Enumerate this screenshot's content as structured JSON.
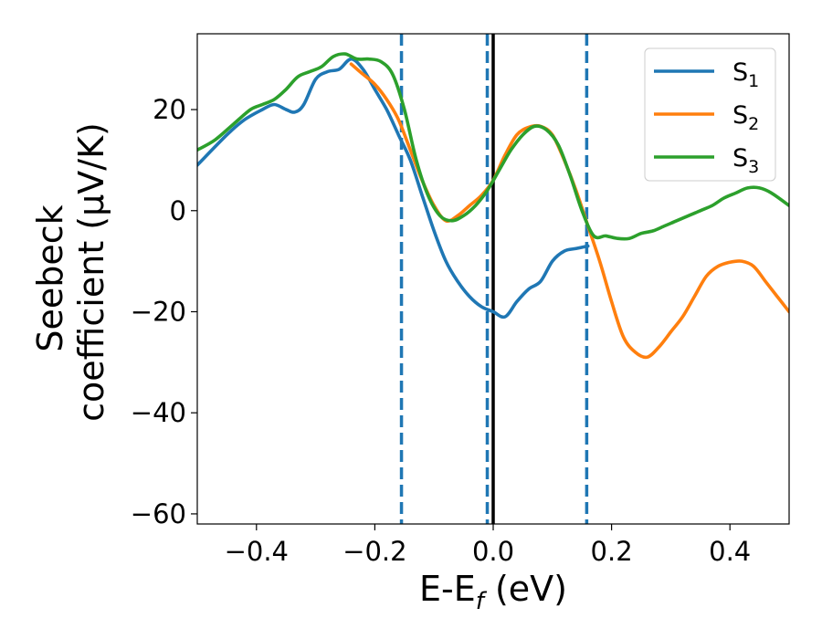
{
  "chart_data": {
    "type": "line",
    "title": "",
    "xlabel": {
      "base": "E-E",
      "sub": "f",
      "tail": " (eV)"
    },
    "ylabel_line1": "Seebeck",
    "ylabel_line2": "coefficient  (μV/K)",
    "xlim": [
      -0.5,
      0.5
    ],
    "ylim": [
      -62,
      35
    ],
    "xticks": [
      -0.4,
      -0.2,
      0.0,
      0.2,
      0.4
    ],
    "xtick_labels": [
      "−0.4",
      "−0.2",
      "0.0",
      "0.2",
      "0.4"
    ],
    "yticks": [
      20,
      0,
      -20,
      -40,
      -60
    ],
    "ytick_labels": [
      "20",
      "0",
      "−20",
      "−40",
      "−60"
    ],
    "vlines": [
      {
        "x": -0.155,
        "style": "dashed",
        "color": "#1f77b4"
      },
      {
        "x": -0.01,
        "style": "dashed",
        "color": "#1f77b4"
      },
      {
        "x": 0.0,
        "style": "solid",
        "color": "#000000"
      },
      {
        "x": 0.158,
        "style": "dashed",
        "color": "#1f77b4"
      }
    ],
    "legend": {
      "position": "top-right"
    },
    "series": [
      {
        "name": "S",
        "sub": "1",
        "color": "#1f77b4",
        "x": [
          -0.5,
          -0.45,
          -0.42,
          -0.39,
          -0.37,
          -0.35,
          -0.335,
          -0.32,
          -0.3,
          -0.28,
          -0.26,
          -0.24,
          -0.22,
          -0.2,
          -0.18,
          -0.16,
          -0.14,
          -0.12,
          -0.1,
          -0.08,
          -0.06,
          -0.04,
          -0.02,
          0.0,
          0.02,
          0.04,
          0.06,
          0.08,
          0.1,
          0.12,
          0.14,
          0.16
        ],
        "values": [
          9,
          15,
          18,
          20,
          21,
          20,
          19.5,
          21,
          26,
          27.5,
          28,
          30,
          28,
          24,
          20,
          15,
          10,
          3,
          -4,
          -10,
          -14,
          -17,
          -19,
          -20,
          -21,
          -18,
          -15.5,
          -14,
          -10,
          -8,
          -7.5,
          -7
        ]
      },
      {
        "name": "S",
        "sub": "2",
        "color": "#ff7f0e",
        "x": [
          -0.24,
          -0.22,
          -0.2,
          -0.18,
          -0.16,
          -0.14,
          -0.12,
          -0.1,
          -0.08,
          -0.06,
          -0.04,
          -0.02,
          0.0,
          0.02,
          0.04,
          0.06,
          0.08,
          0.1,
          0.12,
          0.14,
          0.16,
          0.18,
          0.2,
          0.22,
          0.24,
          0.26,
          0.28,
          0.3,
          0.32,
          0.34,
          0.36,
          0.38,
          0.4,
          0.42,
          0.44,
          0.46,
          0.48,
          0.5
        ],
        "values": [
          29,
          27,
          25,
          22,
          18,
          12,
          6,
          1,
          -2,
          -1,
          1,
          3,
          6,
          11,
          15,
          16.5,
          16.7,
          15,
          10,
          4,
          -3,
          -10,
          -18,
          -25,
          -28,
          -29,
          -27,
          -24,
          -21,
          -17,
          -13,
          -11,
          -10.2,
          -10,
          -11,
          -14,
          -17,
          -20
        ]
      },
      {
        "name": "S",
        "sub": "3",
        "color": "#2ca02c",
        "x": [
          -0.5,
          -0.47,
          -0.44,
          -0.41,
          -0.39,
          -0.37,
          -0.35,
          -0.33,
          -0.31,
          -0.29,
          -0.27,
          -0.25,
          -0.23,
          -0.21,
          -0.19,
          -0.17,
          -0.15,
          -0.13,
          -0.11,
          -0.09,
          -0.07,
          -0.05,
          -0.03,
          -0.01,
          0.01,
          0.03,
          0.05,
          0.07,
          0.09,
          0.11,
          0.13,
          0.15,
          0.17,
          0.19,
          0.21,
          0.23,
          0.25,
          0.27,
          0.29,
          0.31,
          0.33,
          0.35,
          0.37,
          0.39,
          0.41,
          0.43,
          0.45,
          0.47,
          0.5
        ],
        "values": [
          12,
          14,
          17,
          20,
          21,
          22,
          24,
          26.5,
          27.5,
          28.5,
          30.5,
          31,
          30,
          30,
          29.5,
          27,
          20,
          10,
          3,
          -1,
          -2,
          -1,
          1,
          4,
          8,
          12,
          15,
          16.7,
          16,
          13,
          7,
          0,
          -5,
          -5,
          -5.5,
          -5.5,
          -4.5,
          -4,
          -3,
          -2,
          -1,
          0,
          1,
          2.5,
          3.5,
          4.5,
          4.5,
          3.5,
          1
        ]
      }
    ]
  }
}
